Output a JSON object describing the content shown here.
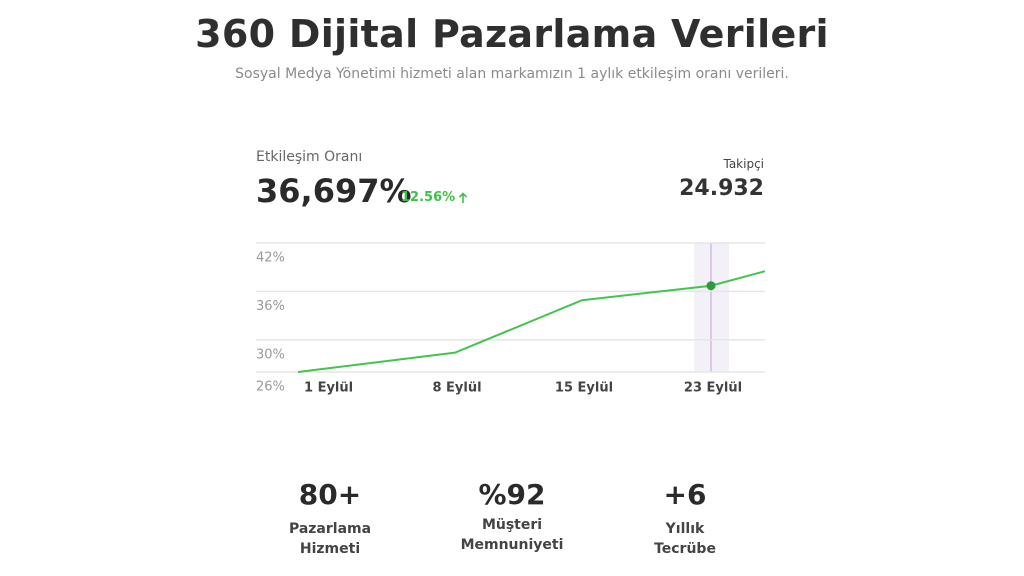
{
  "header": {
    "title": "360 Dijital Pazarlama Verileri",
    "subtitle": "Sosyal Medya Yönetimi hizmeti alan markamızın 1 aylık etkileşim oranı verileri."
  },
  "card": {
    "metric_label": "Etkileşim Oranı",
    "metric_value": "36,697%",
    "change": "12.56%",
    "follower_label": "Takipçi",
    "follower_value": "24.932"
  },
  "chart_data": {
    "type": "line",
    "categories": [
      "1 Eylül",
      "8 Eylül",
      "15 Eylül",
      "23 Eylül",
      null
    ],
    "series": [
      {
        "name": "Etkileşim Oranı",
        "color": "#43c44e",
        "values": [
          26,
          28.4,
          34.9,
          36.7,
          38.5
        ]
      }
    ],
    "ylim": [
      26,
      42
    ],
    "yticks": [
      {
        "value": 42,
        "label": "42%"
      },
      {
        "value": 36,
        "label": "36%"
      },
      {
        "value": 30,
        "label": "30%"
      },
      {
        "value": 26,
        "label": "26%"
      }
    ],
    "grid": true,
    "highlight_index": 3
  },
  "stats": [
    {
      "value": "80+",
      "label": [
        "Pazarlama",
        "Hizmeti"
      ]
    },
    {
      "value": "%92",
      "label": [
        "Müşteri",
        "Memnuniyeti"
      ]
    },
    {
      "value": "+6",
      "label": [
        "Yıllık",
        "Tecrübe"
      ]
    }
  ]
}
